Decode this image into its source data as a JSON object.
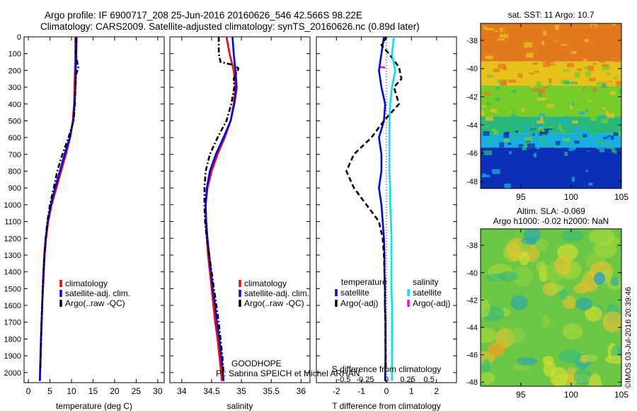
{
  "header": {
    "line1": "Argo profile: IF 6900717_208 25-Jun-2016 20160626_546 42.566S 98.22E",
    "line2": "Climatology: CARS2009. Satellite-adjusted climatology: synTS_20160626.nc (0.89d later)"
  },
  "project": {
    "name": "GOODHOPE",
    "pi": "PI: Sabrina SPEICH et Michel ARHAN"
  },
  "stamp": "©IMOS 03-Jul-2016 20:39:46",
  "colors": {
    "climatology": "#ff0000",
    "satellite": "#0000ff",
    "argo": "#000000",
    "satellite_salinity": "#00e5ee",
    "argo_salinity": "#ff00ff"
  },
  "chart_data": [
    {
      "type": "line",
      "id": "temperature",
      "xlabel": "temperature (deg C)",
      "ylabel": "",
      "xlim": [
        -1,
        31.5
      ],
      "ylim": [
        0,
        2060
      ],
      "y_reversed": true,
      "xticks": [
        0,
        5,
        10,
        15,
        20,
        25,
        30
      ],
      "yticks": [
        0,
        100,
        200,
        300,
        400,
        500,
        600,
        700,
        800,
        900,
        1000,
        1100,
        1200,
        1300,
        1400,
        1500,
        1600,
        1700,
        1800,
        1900,
        2000
      ],
      "legend": {
        "position": "bottom-right",
        "entries": [
          "climatology",
          "satellite-adj. clim.",
          "Argo(..raw -QC)"
        ]
      },
      "series": [
        {
          "name": "climatology",
          "color": "#ff0000",
          "style": "solid",
          "points": [
            [
              10.9,
              0
            ],
            [
              10.9,
              100
            ],
            [
              10.8,
              200
            ],
            [
              10.7,
              300
            ],
            [
              10.6,
              400
            ],
            [
              10.3,
              500
            ],
            [
              9.7,
              600
            ],
            [
              8.7,
              700
            ],
            [
              7.6,
              800
            ],
            [
              6.5,
              900
            ],
            [
              5.4,
              1000
            ],
            [
              4.6,
              1100
            ],
            [
              4.1,
              1200
            ],
            [
              3.8,
              1300
            ],
            [
              3.6,
              1400
            ],
            [
              3.4,
              1500
            ],
            [
              3.2,
              1600
            ],
            [
              3.1,
              1700
            ],
            [
              2.95,
              1800
            ],
            [
              2.85,
              1900
            ],
            [
              2.75,
              2000
            ],
            [
              2.7,
              2050
            ]
          ]
        },
        {
          "name": "satellite-adj. clim.",
          "color": "#0000ff",
          "style": "solid",
          "points": [
            [
              11.2,
              0
            ],
            [
              11.1,
              100
            ],
            [
              11.0,
              200
            ],
            [
              10.9,
              300
            ],
            [
              10.7,
              400
            ],
            [
              10.4,
              500
            ],
            [
              9.6,
              600
            ],
            [
              8.4,
              700
            ],
            [
              7.3,
              800
            ],
            [
              6.2,
              900
            ],
            [
              5.2,
              1000
            ],
            [
              4.5,
              1100
            ],
            [
              4.0,
              1200
            ],
            [
              3.7,
              1300
            ],
            [
              3.5,
              1400
            ],
            [
              3.35,
              1500
            ],
            [
              3.2,
              1600
            ],
            [
              3.05,
              1700
            ],
            [
              2.9,
              1800
            ],
            [
              2.8,
              1900
            ],
            [
              2.7,
              2000
            ],
            [
              2.65,
              2050
            ]
          ]
        },
        {
          "name": "Argo(..raw -QC)",
          "color": "#000000",
          "style": "dashdot",
          "points": [
            [
              11.0,
              10
            ],
            [
              11.0,
              100
            ],
            [
              11.4,
              160
            ],
            [
              11.6,
              185
            ],
            [
              11.1,
              220
            ],
            [
              10.9,
              300
            ],
            [
              10.8,
              400
            ],
            [
              10.5,
              500
            ],
            [
              9.3,
              600
            ],
            [
              7.9,
              700
            ],
            [
              6.7,
              800
            ],
            [
              5.9,
              900
            ],
            [
              5.0,
              1000
            ],
            [
              4.4,
              1100
            ],
            [
              4.0,
              1200
            ],
            [
              3.7,
              1300
            ],
            [
              3.5,
              1400
            ],
            [
              3.3,
              1500
            ],
            [
              3.2,
              1600
            ],
            [
              3.05,
              1700
            ],
            [
              2.95,
              1800
            ],
            [
              2.85,
              1900
            ],
            [
              2.75,
              1990
            ]
          ]
        }
      ]
    },
    {
      "type": "line",
      "id": "salinity",
      "xlabel": "salinity",
      "ylabel": "",
      "xlim": [
        33.8,
        36.15
      ],
      "ylim": [
        0,
        2060
      ],
      "y_reversed": true,
      "xticks": [
        34,
        34.5,
        35,
        35.5,
        36
      ],
      "legend": {
        "position": "bottom-right",
        "entries": [
          "climatology",
          "satellite-adj. clim.",
          "Argo(..raw -QC)"
        ]
      },
      "series": [
        {
          "name": "climatology",
          "color": "#ff0000",
          "style": "solid",
          "points": [
            [
              34.75,
              0
            ],
            [
              34.8,
              100
            ],
            [
              34.87,
              200
            ],
            [
              34.9,
              300
            ],
            [
              34.87,
              400
            ],
            [
              34.82,
              500
            ],
            [
              34.72,
              600
            ],
            [
              34.6,
              700
            ],
            [
              34.5,
              800
            ],
            [
              34.43,
              900
            ],
            [
              34.4,
              1000
            ],
            [
              34.4,
              1100
            ],
            [
              34.42,
              1200
            ],
            [
              34.44,
              1300
            ],
            [
              34.47,
              1400
            ],
            [
              34.5,
              1500
            ],
            [
              34.53,
              1600
            ],
            [
              34.56,
              1700
            ],
            [
              34.6,
              1800
            ],
            [
              34.63,
              1900
            ],
            [
              34.66,
              2000
            ],
            [
              34.67,
              2050
            ]
          ]
        },
        {
          "name": "satellite-adj. clim.",
          "color": "#0000ff",
          "style": "solid",
          "points": [
            [
              34.85,
              0
            ],
            [
              34.87,
              100
            ],
            [
              34.9,
              200
            ],
            [
              34.92,
              300
            ],
            [
              34.88,
              400
            ],
            [
              34.82,
              500
            ],
            [
              34.7,
              600
            ],
            [
              34.57,
              700
            ],
            [
              34.47,
              800
            ],
            [
              34.42,
              900
            ],
            [
              34.4,
              1000
            ],
            [
              34.41,
              1100
            ],
            [
              34.43,
              1200
            ],
            [
              34.46,
              1300
            ],
            [
              34.49,
              1400
            ],
            [
              34.52,
              1500
            ],
            [
              34.56,
              1600
            ],
            [
              34.59,
              1700
            ],
            [
              34.63,
              1800
            ],
            [
              34.66,
              1900
            ],
            [
              34.69,
              2000
            ],
            [
              34.7,
              2050
            ]
          ]
        },
        {
          "name": "Argo(..raw -QC)",
          "color": "#000000",
          "style": "dashdot",
          "points": [
            [
              34.62,
              0
            ],
            [
              34.62,
              100
            ],
            [
              34.65,
              150
            ],
            [
              34.9,
              170
            ],
            [
              34.95,
              190
            ],
            [
              34.87,
              250
            ],
            [
              34.88,
              300
            ],
            [
              34.83,
              400
            ],
            [
              34.75,
              500
            ],
            [
              34.6,
              600
            ],
            [
              34.47,
              700
            ],
            [
              34.4,
              800
            ],
            [
              34.38,
              900
            ],
            [
              34.38,
              1000
            ],
            [
              34.39,
              1100
            ],
            [
              34.42,
              1200
            ],
            [
              34.46,
              1300
            ],
            [
              34.5,
              1400
            ],
            [
              34.54,
              1500
            ],
            [
              34.58,
              1600
            ],
            [
              34.62,
              1700
            ],
            [
              34.65,
              1800
            ],
            [
              34.68,
              1900
            ],
            [
              34.7,
              2000
            ]
          ]
        }
      ]
    },
    {
      "type": "line",
      "id": "difference",
      "xlabel": "T difference from climatology",
      "xlabel_top": "S difference from climatology",
      "xlim": [
        -2.8,
        2.8
      ],
      "ylim": [
        0,
        2060
      ],
      "y_reversed": true,
      "xticks": [
        -2,
        -1,
        0,
        1,
        2
      ],
      "xticks_s": [
        -0.5,
        -0.25,
        0,
        0.25,
        0.5
      ],
      "legend": {
        "position": "bottom",
        "temperature_header": "temperature",
        "salinity_header": "salinity",
        "entries": [
          "satellite",
          "Argo(-adj)",
          "satellite",
          "Argo(-adj)"
        ]
      },
      "series": [
        {
          "name": "temperature satellite",
          "color": "#0000ff",
          "style": "solid",
          "points": [
            [
              -0.1,
              0
            ],
            [
              -0.2,
              100
            ],
            [
              -0.3,
              200
            ],
            [
              -0.2,
              300
            ],
            [
              -0.05,
              400
            ],
            [
              -0.1,
              500
            ],
            [
              -0.3,
              600
            ],
            [
              -0.2,
              700
            ],
            [
              -0.2,
              800
            ],
            [
              -0.3,
              900
            ],
            [
              -0.2,
              1000
            ],
            [
              -0.15,
              1100
            ],
            [
              -0.1,
              1200
            ],
            [
              -0.08,
              1300
            ],
            [
              -0.08,
              1400
            ],
            [
              -0.06,
              1500
            ],
            [
              -0.06,
              1600
            ],
            [
              -0.04,
              1700
            ],
            [
              -0.04,
              1800
            ],
            [
              -0.04,
              1900
            ],
            [
              -0.05,
              2000
            ],
            [
              -0.05,
              2050
            ]
          ]
        },
        {
          "name": "temperature Argo(-adj)",
          "color": "#000000",
          "style": "dashed",
          "points": [
            [
              0.0,
              0
            ],
            [
              -0.2,
              50
            ],
            [
              0.1,
              100
            ],
            [
              0.5,
              180
            ],
            [
              0.6,
              250
            ],
            [
              0.3,
              300
            ],
            [
              0.5,
              400
            ],
            [
              -0.1,
              500
            ],
            [
              -0.6,
              600
            ],
            [
              -1.3,
              700
            ],
            [
              -1.6,
              800
            ],
            [
              -1.3,
              900
            ],
            [
              -0.8,
              1000
            ],
            [
              -0.3,
              1100
            ],
            [
              -0.15,
              1200
            ],
            [
              -0.1,
              1300
            ],
            [
              -0.08,
              1400
            ],
            [
              -0.06,
              1500
            ],
            [
              -0.06,
              1600
            ],
            [
              -0.04,
              1700
            ],
            [
              -0.04,
              1800
            ],
            [
              -0.03,
              1900
            ],
            [
              -0.02,
              1990
            ]
          ]
        },
        {
          "name": "salinity satellite",
          "color": "#00e5ee",
          "style": "solid",
          "points": [
            [
              0.3,
              0
            ],
            [
              0.22,
              100
            ],
            [
              0.35,
              200
            ],
            [
              0.22,
              300
            ],
            [
              0.15,
              400
            ],
            [
              0.12,
              500
            ],
            [
              0.12,
              600
            ],
            [
              0.12,
              700
            ],
            [
              0.12,
              800
            ],
            [
              0.15,
              900
            ],
            [
              0.15,
              1000
            ],
            [
              0.18,
              1100
            ],
            [
              0.2,
              1200
            ],
            [
              0.2,
              1300
            ],
            [
              0.2,
              1400
            ],
            [
              0.2,
              1500
            ],
            [
              0.22,
              1600
            ],
            [
              0.22,
              1700
            ],
            [
              0.22,
              1800
            ],
            [
              0.22,
              1900
            ],
            [
              0.22,
              2000
            ],
            [
              0.22,
              2050
            ]
          ]
        },
        {
          "name": "salinity Argo(-adj)",
          "color": "#ff00ff",
          "style": "dashed",
          "points": [
            [
              -0.25,
              180
            ],
            [
              0.0,
              185
            ]
          ]
        }
      ]
    },
    {
      "type": "heatmap",
      "id": "sst_map",
      "title": "sat. SST: 11 Argo: 10.7",
      "xlim": [
        91,
        105
      ],
      "ylim": [
        -48.5,
        -36.8
      ],
      "xticks": [
        95,
        100,
        105
      ],
      "yticks": [
        -38,
        -40,
        -42,
        -44,
        -46,
        -48
      ],
      "color_bands": [
        {
          "from_lat": -36.8,
          "to_lat": -39.5,
          "color": "#e2791f"
        },
        {
          "from_lat": -39.5,
          "to_lat": -41.2,
          "color": "#e8c21c"
        },
        {
          "from_lat": -41.2,
          "to_lat": -43.4,
          "color": "#78cc2a"
        },
        {
          "from_lat": -43.4,
          "to_lat": -44.6,
          "color": "#2ab87a"
        },
        {
          "from_lat": -44.6,
          "to_lat": -45.6,
          "color": "#18aee0"
        },
        {
          "from_lat": -45.6,
          "to_lat": -48.5,
          "color": "#0c2fb8"
        }
      ]
    },
    {
      "type": "heatmap",
      "id": "sla_map",
      "title": "Altim. SLA: -0.069",
      "subtitle": "Argo h1000: -0.02 h2000: NaN",
      "xlim": [
        91,
        105
      ],
      "ylim": [
        -48.3,
        -36.8
      ],
      "xticks": [
        95,
        100,
        105
      ],
      "yticks": [
        -38,
        -40,
        -42,
        -44,
        -46,
        -48
      ],
      "background_color": "#6cc844"
    }
  ]
}
